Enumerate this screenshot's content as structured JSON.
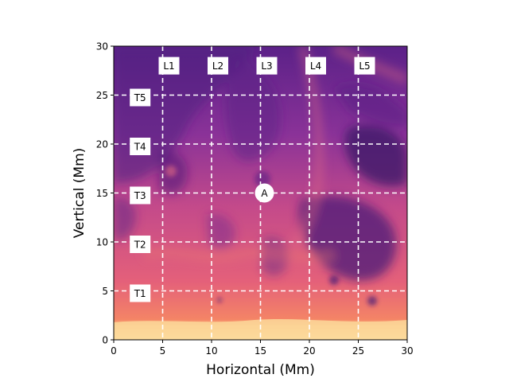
{
  "chart_data": {
    "type": "heatmap",
    "title": "",
    "xlabel": "Horizontal (Mm)",
    "ylabel": "Vertical (Mm)",
    "xlim": [
      0,
      30
    ],
    "ylim": [
      0,
      30
    ],
    "xticks": [
      0,
      5,
      10,
      15,
      20,
      25,
      30
    ],
    "yticks": [
      0,
      5,
      10,
      15,
      20,
      25,
      30
    ],
    "colormap": "magma",
    "colors": {
      "dark": "#4a1a78",
      "mid": "#a43f9c",
      "warm": "#e05a7a",
      "bright": "#f7986a",
      "pale": "#fde3a8",
      "line": "#ffffff"
    },
    "vertical_lines": [
      {
        "label": "L1",
        "x": 5
      },
      {
        "label": "L2",
        "x": 10
      },
      {
        "label": "L3",
        "x": 15
      },
      {
        "label": "L4",
        "x": 20
      },
      {
        "label": "L5",
        "x": 25
      }
    ],
    "horizontal_lines": [
      {
        "label": "T1",
        "y": 5
      },
      {
        "label": "T2",
        "y": 10
      },
      {
        "label": "T3",
        "y": 15
      },
      {
        "label": "T4",
        "y": 20
      },
      {
        "label": "T5",
        "y": 25
      }
    ],
    "marker": {
      "label": "A",
      "x": 15,
      "y": 15
    }
  }
}
